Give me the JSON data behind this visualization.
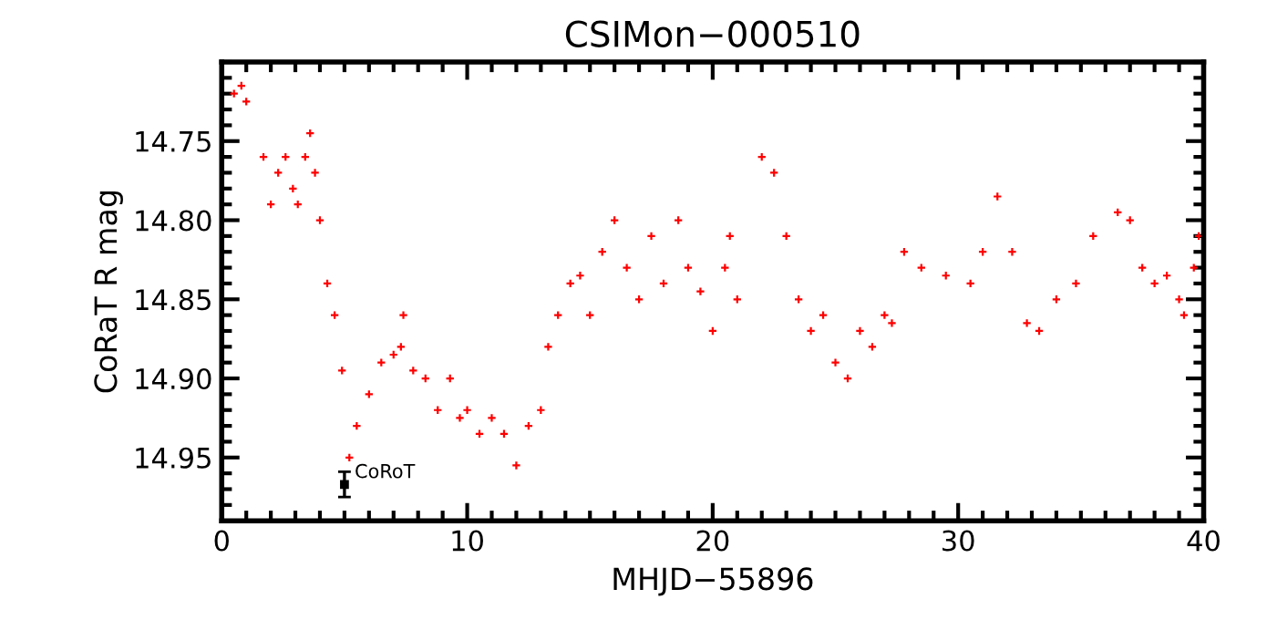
{
  "chart_data": {
    "type": "scatter",
    "title": "CSIMon−000510",
    "xlabel": "MHJD−55896",
    "ylabel": "CoRaT R mag",
    "xlim": [
      0,
      40
    ],
    "xticks": [
      0,
      10,
      20,
      30,
      40
    ],
    "ylim": [
      14.99,
      14.7
    ],
    "yticks": [
      14.75,
      {
        "value": 14.8,
        "label": "14.80"
      },
      14.85,
      {
        "value": 14.9,
        "label": "14.90"
      },
      14.95
    ],
    "marker": "cross",
    "series": [
      {
        "color": "#ff0000",
        "x": [
          0.5,
          0.8,
          1.0,
          1.7,
          2.0,
          2.3,
          2.6,
          2.9,
          3.1,
          3.4,
          3.6,
          3.8,
          4.0,
          4.3,
          4.6,
          4.9,
          5.2,
          5.5,
          6.0,
          6.5,
          7.0,
          7.3,
          7.4,
          7.8,
          8.3,
          8.8,
          9.3,
          9.7,
          10,
          10.5,
          11,
          11.5,
          12,
          12.5,
          13,
          13.3,
          13.7,
          14.2,
          14.6,
          15.0,
          15.5,
          16.0,
          16.5,
          17.0,
          17.5,
          18,
          18.6,
          19,
          19.5,
          20,
          20.5,
          20.7,
          21.0,
          22,
          22.5,
          23,
          23.5,
          24,
          24.5,
          25,
          25.5,
          26,
          26.5,
          27,
          27.3,
          27.8,
          28.5,
          29.5,
          30.5,
          31,
          31.6,
          32.2,
          32.8,
          33.3,
          34,
          34.8,
          35.5,
          36.5,
          37,
          37.5,
          38,
          38.5,
          39,
          39.2,
          39.6,
          39.8
        ],
        "values": [
          14.72,
          14.715,
          14.725,
          14.76,
          14.79,
          14.77,
          14.76,
          14.78,
          14.79,
          14.76,
          14.745,
          14.77,
          14.8,
          14.84,
          14.86,
          14.895,
          14.95,
          14.93,
          14.91,
          14.89,
          14.885,
          14.88,
          14.86,
          14.895,
          14.9,
          14.92,
          14.9,
          14.925,
          14.92,
          14.935,
          14.925,
          14.935,
          14.955,
          14.93,
          14.92,
          14.88,
          14.86,
          14.84,
          14.835,
          14.86,
          14.82,
          14.8,
          14.83,
          14.85,
          14.81,
          14.84,
          14.8,
          14.83,
          14.845,
          14.87,
          14.83,
          14.81,
          14.85,
          14.76,
          14.77,
          14.81,
          14.85,
          14.87,
          14.86,
          14.89,
          14.9,
          14.87,
          14.88,
          14.86,
          14.865,
          14.82,
          14.83,
          14.835,
          14.84,
          14.82,
          14.785,
          14.82,
          14.865,
          14.87,
          14.85,
          14.84,
          14.81,
          14.795,
          14.8,
          14.83,
          14.84,
          14.835,
          14.85,
          14.86,
          14.83,
          14.81
        ]
      },
      {
        "name": "CoRoT",
        "color": "#000000",
        "x": [
          5.0
        ],
        "values": [
          14.967
        ],
        "errors": [
          0.008
        ],
        "marker": "square"
      }
    ]
  }
}
